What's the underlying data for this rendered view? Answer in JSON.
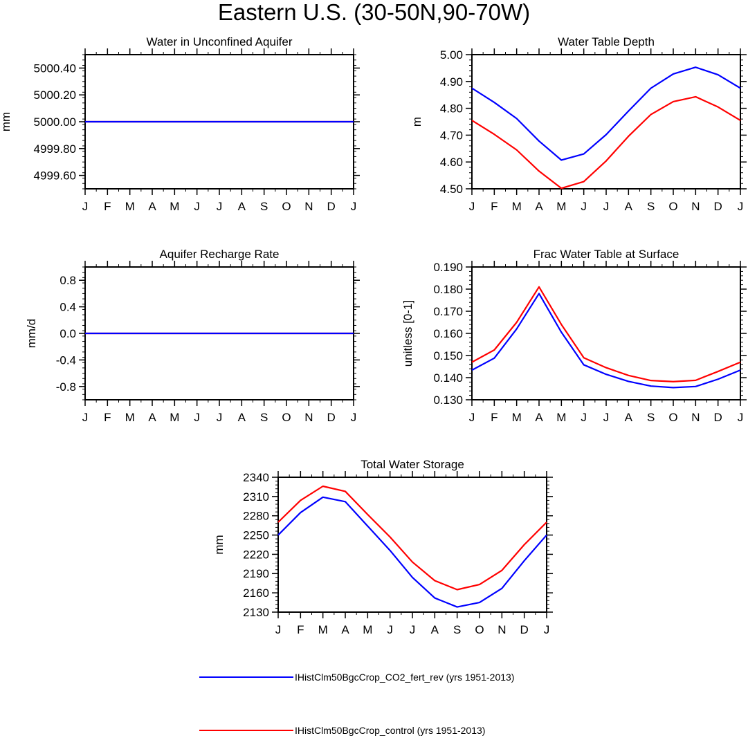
{
  "figure": {
    "title": "Eastern U.S. (30-50N,90-70W)",
    "legend": [
      {
        "label": "IHistClm50BgcCrop_CO2_fert_rev (yrs 1951-2013)",
        "color": "#0000ff"
      },
      {
        "label": "IHistClm50BgcCrop_control (yrs 1951-2013)",
        "color": "#ff0000"
      }
    ]
  },
  "chart_data": [
    {
      "type": "line",
      "title": "Water in Unconfined Aquifer",
      "ylabel": "mm",
      "xlabel": "",
      "x": [
        "J",
        "F",
        "M",
        "A",
        "M",
        "J",
        "J",
        "A",
        "S",
        "O",
        "N",
        "D",
        "J"
      ],
      "ylim": [
        4999.5,
        5000.5
      ],
      "yticks": [
        4999.6,
        4999.8,
        5000.0,
        5000.2,
        5000.4
      ],
      "ytick_labels": [
        "4999.60",
        "4999.80",
        "5000.00",
        "5000.20",
        "5000.40"
      ],
      "series": [
        {
          "color": "#ff0000",
          "values": [
            5000,
            5000,
            5000,
            5000,
            5000,
            5000,
            5000,
            5000,
            5000,
            5000,
            5000,
            5000,
            5000
          ]
        },
        {
          "color": "#0000ff",
          "values": [
            5000,
            5000,
            5000,
            5000,
            5000,
            5000,
            5000,
            5000,
            5000,
            5000,
            5000,
            5000,
            5000
          ]
        }
      ]
    },
    {
      "type": "line",
      "title": "Water Table Depth",
      "ylabel": "m",
      "xlabel": "",
      "x": [
        "J",
        "F",
        "M",
        "A",
        "M",
        "J",
        "J",
        "A",
        "S",
        "O",
        "N",
        "D",
        "J"
      ],
      "ylim": [
        4.5,
        5.0
      ],
      "yticks": [
        4.5,
        4.6,
        4.7,
        4.8,
        4.9,
        5.0
      ],
      "ytick_labels": [
        "4.50",
        "4.60",
        "4.70",
        "4.80",
        "4.90",
        "5.00"
      ],
      "series": [
        {
          "color": "#0000ff",
          "values": [
            4.875,
            4.822,
            4.762,
            4.678,
            4.607,
            4.63,
            4.702,
            4.79,
            4.875,
            4.928,
            4.953,
            4.925,
            4.875
          ]
        },
        {
          "color": "#ff0000",
          "values": [
            4.755,
            4.703,
            4.645,
            4.566,
            4.502,
            4.527,
            4.604,
            4.696,
            4.777,
            4.825,
            4.843,
            4.805,
            4.755
          ]
        }
      ]
    },
    {
      "type": "line",
      "title": "Aquifer Recharge Rate",
      "ylabel": "mm/d",
      "xlabel": "",
      "x": [
        "J",
        "F",
        "M",
        "A",
        "M",
        "J",
        "J",
        "A",
        "S",
        "O",
        "N",
        "D",
        "J"
      ],
      "ylim": [
        -1.0,
        1.0
      ],
      "yticks": [
        -0.8,
        -0.4,
        0.0,
        0.4,
        0.8
      ],
      "ytick_labels": [
        "-0.8",
        "-0.4",
        "0.0",
        "0.4",
        "0.8"
      ],
      "series": [
        {
          "color": "#ff0000",
          "values": [
            0,
            0,
            0,
            0,
            0,
            0,
            0,
            0,
            0,
            0,
            0,
            0,
            0
          ]
        },
        {
          "color": "#0000ff",
          "values": [
            0,
            0,
            0,
            0,
            0,
            0,
            0,
            0,
            0,
            0,
            0,
            0,
            0
          ]
        }
      ]
    },
    {
      "type": "line",
      "title": "Frac Water Table at Surface",
      "ylabel": "unitless [0-1]",
      "xlabel": "",
      "x": [
        "J",
        "F",
        "M",
        "A",
        "M",
        "J",
        "J",
        "A",
        "S",
        "O",
        "N",
        "D",
        "J"
      ],
      "ylim": [
        0.13,
        0.19
      ],
      "yticks": [
        0.13,
        0.14,
        0.15,
        0.16,
        0.17,
        0.18,
        0.19
      ],
      "ytick_labels": [
        "0.130",
        "0.140",
        "0.150",
        "0.160",
        "0.170",
        "0.180",
        "0.190"
      ],
      "series": [
        {
          "color": "#0000ff",
          "values": [
            0.1434,
            0.1488,
            0.162,
            0.178,
            0.1605,
            0.1458,
            0.1415,
            0.1383,
            0.1362,
            0.1355,
            0.136,
            0.1393,
            0.1434
          ]
        },
        {
          "color": "#ff0000",
          "values": [
            0.147,
            0.1525,
            0.165,
            0.181,
            0.164,
            0.149,
            0.1445,
            0.141,
            0.1387,
            0.1382,
            0.1388,
            0.1428,
            0.147
          ]
        }
      ]
    },
    {
      "type": "line",
      "title": "Total Water Storage",
      "ylabel": "mm",
      "xlabel": "",
      "x": [
        "J",
        "F",
        "M",
        "A",
        "M",
        "J",
        "J",
        "A",
        "S",
        "O",
        "N",
        "D",
        "J"
      ],
      "ylim": [
        2130,
        2340
      ],
      "yticks": [
        2130,
        2160,
        2190,
        2220,
        2250,
        2280,
        2310,
        2340
      ],
      "ytick_labels": [
        "2130",
        "2160",
        "2190",
        "2220",
        "2250",
        "2280",
        "2310",
        "2340"
      ],
      "series": [
        {
          "color": "#0000ff",
          "values": [
            2250,
            2285,
            2309,
            2302,
            2264,
            2226,
            2184,
            2152,
            2138,
            2145,
            2167,
            2210,
            2250
          ]
        },
        {
          "color": "#ff0000",
          "values": [
            2270,
            2304,
            2326,
            2318,
            2282,
            2247,
            2208,
            2179,
            2165,
            2173,
            2195,
            2235,
            2270
          ]
        }
      ]
    }
  ]
}
